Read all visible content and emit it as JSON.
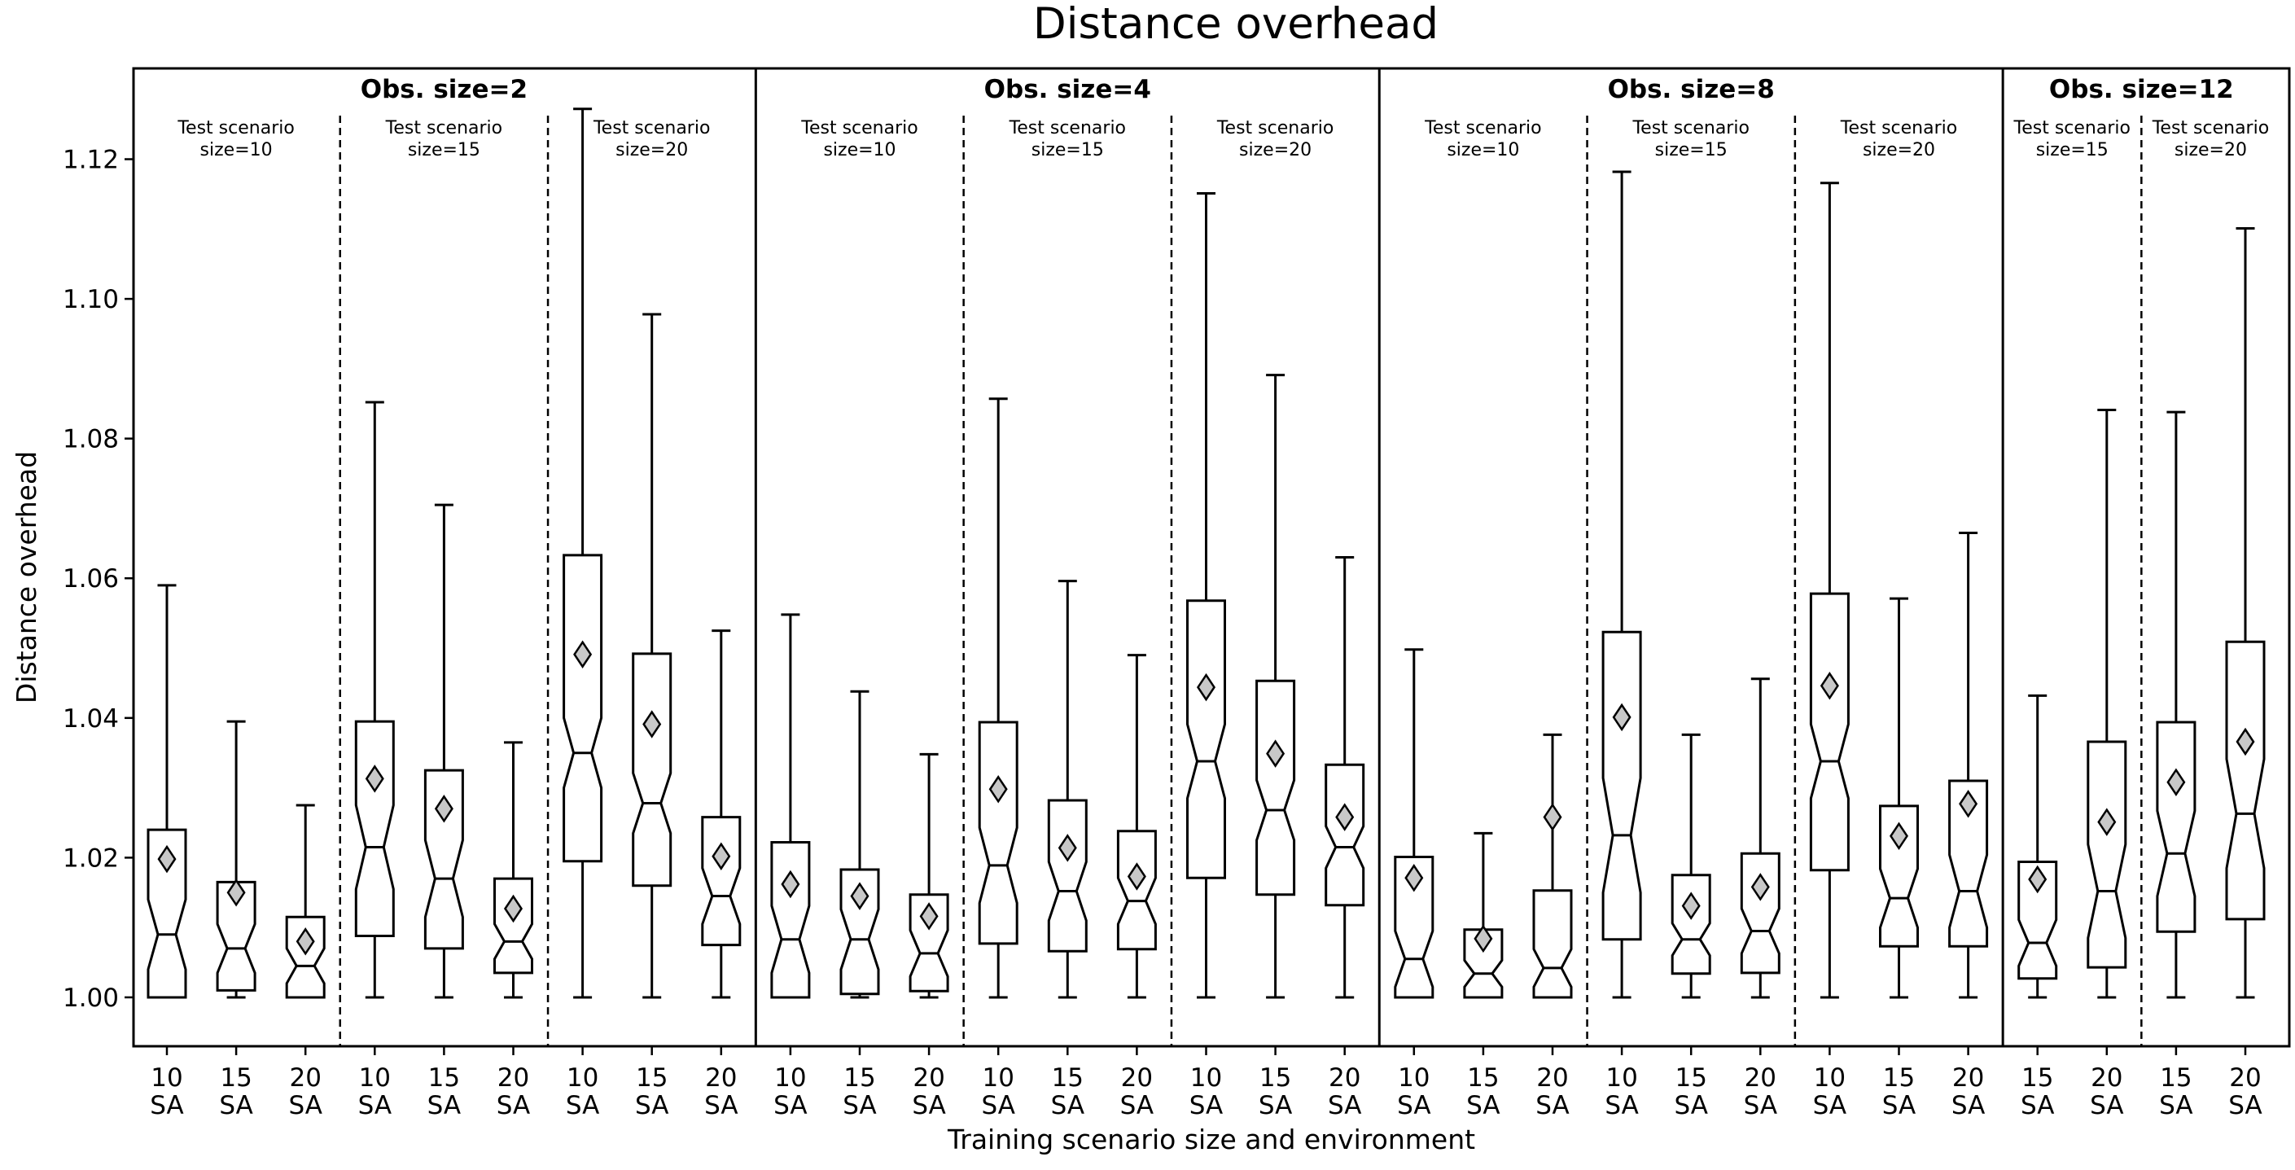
{
  "chart_data": {
    "type": "boxplot",
    "title": "Distance overhead",
    "xlabel": "Training scenario size and environment",
    "ylabel": "Distance overhead",
    "ylim": [
      0.993,
      1.133
    ],
    "yticks": [
      "1.00",
      "1.02",
      "1.04",
      "1.06",
      "1.08",
      "1.10",
      "1.12"
    ],
    "grid": false,
    "groups": [
      {
        "title": "Obs. size=2",
        "subgroups": [
          {
            "label_line1": "Test scenario",
            "label_line2": "size=10",
            "boxes": [
              {
                "train": "10",
                "env": "SA",
                "whislo": 1.0,
                "q1": 1.0,
                "med": 1.009,
                "q3": 1.024,
                "whishi": 1.059,
                "mean": 1.0198,
                "notch_lo": 1.004,
                "notch_hi": 1.014
              },
              {
                "train": "15",
                "env": "SA",
                "whislo": 1.0,
                "q1": 1.001,
                "med": 1.007,
                "q3": 1.0165,
                "whishi": 1.0395,
                "mean": 1.015,
                "notch_lo": 1.0035,
                "notch_hi": 1.0105
              },
              {
                "train": "20",
                "env": "SA",
                "whislo": 1.0,
                "q1": 1.0,
                "med": 1.0045,
                "q3": 1.0115,
                "whishi": 1.0275,
                "mean": 1.008,
                "notch_lo": 1.002,
                "notch_hi": 1.007
              }
            ]
          },
          {
            "label_line1": "Test scenario",
            "label_line2": "size=15",
            "boxes": [
              {
                "train": "10",
                "env": "SA",
                "whislo": 1.0,
                "q1": 1.0088,
                "med": 1.0215,
                "q3": 1.0395,
                "whishi": 1.0852,
                "mean": 1.0313,
                "notch_lo": 1.0155,
                "notch_hi": 1.0275
              },
              {
                "train": "15",
                "env": "SA",
                "whislo": 1.0,
                "q1": 1.007,
                "med": 1.017,
                "q3": 1.0325,
                "whishi": 1.0705,
                "mean": 1.027,
                "notch_lo": 1.0115,
                "notch_hi": 1.0225
              },
              {
                "train": "20",
                "env": "SA",
                "whislo": 1.0,
                "q1": 1.0035,
                "med": 1.008,
                "q3": 1.017,
                "whishi": 1.0365,
                "mean": 1.0127,
                "notch_lo": 1.0055,
                "notch_hi": 1.0105
              }
            ]
          },
          {
            "label_line1": "Test scenario",
            "label_line2": "size=20",
            "boxes": [
              {
                "train": "10",
                "env": "SA",
                "whislo": 1.0,
                "q1": 1.0195,
                "med": 1.035,
                "q3": 1.0633,
                "whishi": 1.1272,
                "mean": 1.0491,
                "notch_lo": 1.03,
                "notch_hi": 1.04
              },
              {
                "train": "15",
                "env": "SA",
                "whislo": 1.0,
                "q1": 1.016,
                "med": 1.0278,
                "q3": 1.0492,
                "whishi": 1.0978,
                "mean": 1.0391,
                "notch_lo": 1.0235,
                "notch_hi": 1.0321
              },
              {
                "train": "20",
                "env": "SA",
                "whislo": 1.0,
                "q1": 1.0075,
                "med": 1.0145,
                "q3": 1.0258,
                "whishi": 1.0525,
                "mean": 1.0202,
                "notch_lo": 1.0105,
                "notch_hi": 1.0185
              }
            ]
          }
        ]
      },
      {
        "title": "Obs. size=4",
        "subgroups": [
          {
            "label_line1": "Test scenario",
            "label_line2": "size=10",
            "boxes": [
              {
                "train": "10",
                "env": "SA",
                "whislo": 1.0,
                "q1": 1.0,
                "med": 1.0083,
                "q3": 1.0222,
                "whishi": 1.0548,
                "mean": 1.0162,
                "notch_lo": 1.0035,
                "notch_hi": 1.0131
              },
              {
                "train": "15",
                "env": "SA",
                "whislo": 1.0,
                "q1": 1.0005,
                "med": 1.0083,
                "q3": 1.0183,
                "whishi": 1.0438,
                "mean": 1.0145,
                "notch_lo": 1.004,
                "notch_hi": 1.0126
              },
              {
                "train": "20",
                "env": "SA",
                "whislo": 1.0,
                "q1": 1.0009,
                "med": 1.0063,
                "q3": 1.0147,
                "whishi": 1.0348,
                "mean": 1.0116,
                "notch_lo": 1.003,
                "notch_hi": 1.0096
              }
            ]
          },
          {
            "label_line1": "Test scenario",
            "label_line2": "size=15",
            "boxes": [
              {
                "train": "10",
                "env": "SA",
                "whislo": 1.0,
                "q1": 1.0077,
                "med": 1.0189,
                "q3": 1.0394,
                "whishi": 1.0857,
                "mean": 1.0298,
                "notch_lo": 1.0135,
                "notch_hi": 1.0243
              },
              {
                "train": "15",
                "env": "SA",
                "whislo": 1.0,
                "q1": 1.0066,
                "med": 1.0152,
                "q3": 1.0282,
                "whishi": 1.0596,
                "mean": 1.0214,
                "notch_lo": 1.011,
                "notch_hi": 1.0194
              },
              {
                "train": "20",
                "env": "SA",
                "whislo": 1.0,
                "q1": 1.0069,
                "med": 1.0138,
                "q3": 1.0238,
                "whishi": 1.049,
                "mean": 1.0173,
                "notch_lo": 1.0105,
                "notch_hi": 1.0171
              }
            ]
          },
          {
            "label_line1": "Test scenario",
            "label_line2": "size=20",
            "boxes": [
              {
                "train": "10",
                "env": "SA",
                "whislo": 1.0,
                "q1": 1.0171,
                "med": 1.0338,
                "q3": 1.0568,
                "whishi": 1.1151,
                "mean": 1.0444,
                "notch_lo": 1.0285,
                "notch_hi": 1.0391
              },
              {
                "train": "15",
                "env": "SA",
                "whislo": 1.0,
                "q1": 1.0147,
                "med": 1.0268,
                "q3": 1.0453,
                "whishi": 1.0891,
                "mean": 1.0349,
                "notch_lo": 1.0225,
                "notch_hi": 1.0311
              },
              {
                "train": "20",
                "env": "SA",
                "whislo": 1.0,
                "q1": 1.0132,
                "med": 1.0215,
                "q3": 1.0333,
                "whishi": 1.063,
                "mean": 1.0258,
                "notch_lo": 1.0185,
                "notch_hi": 1.0245
              }
            ]
          }
        ]
      },
      {
        "title": "Obs. size=8",
        "subgroups": [
          {
            "label_line1": "Test scenario",
            "label_line2": "size=10",
            "boxes": [
              {
                "train": "10",
                "env": "SA",
                "whislo": 1.0,
                "q1": 1.0,
                "med": 1.0055,
                "q3": 1.0201,
                "whishi": 1.0498,
                "mean": 1.0171,
                "notch_lo": 1.0015,
                "notch_hi": 1.0095
              },
              {
                "train": "15",
                "env": "SA",
                "whislo": 1.0,
                "q1": 1.0,
                "med": 1.0034,
                "q3": 1.0097,
                "whishi": 1.0235,
                "mean": 1.0084,
                "notch_lo": 1.0015,
                "notch_hi": 1.0053
              },
              {
                "train": "20",
                "env": "SA",
                "whislo": 1.0,
                "q1": 1.0,
                "med": 1.0042,
                "q3": 1.0153,
                "whishi": 1.0376,
                "mean": 1.0258,
                "notch_lo": 1.0015,
                "notch_hi": 1.0069
              }
            ]
          },
          {
            "label_line1": "Test scenario",
            "label_line2": "size=15",
            "boxes": [
              {
                "train": "10",
                "env": "SA",
                "whislo": 1.0,
                "q1": 1.0083,
                "med": 1.0232,
                "q3": 1.0523,
                "whishi": 1.1182,
                "mean": 1.0401,
                "notch_lo": 1.015,
                "notch_hi": 1.0314
              },
              {
                "train": "15",
                "env": "SA",
                "whislo": 1.0,
                "q1": 1.0034,
                "med": 1.0083,
                "q3": 1.0175,
                "whishi": 1.0376,
                "mean": 1.0131,
                "notch_lo": 1.006,
                "notch_hi": 1.0106
              },
              {
                "train": "20",
                "env": "SA",
                "whislo": 1.0,
                "q1": 1.0035,
                "med": 1.0095,
                "q3": 1.0206,
                "whishi": 1.0456,
                "mean": 1.0158,
                "notch_lo": 1.0063,
                "notch_hi": 1.0127
              }
            ]
          },
          {
            "label_line1": "Test scenario",
            "label_line2": "size=20",
            "boxes": [
              {
                "train": "10",
                "env": "SA",
                "whislo": 1.0,
                "q1": 1.0182,
                "med": 1.0338,
                "q3": 1.0578,
                "whishi": 1.1166,
                "mean": 1.0446,
                "notch_lo": 1.0285,
                "notch_hi": 1.0391
              },
              {
                "train": "15",
                "env": "SA",
                "whislo": 1.0,
                "q1": 1.0073,
                "med": 1.0142,
                "q3": 1.0274,
                "whishi": 1.0571,
                "mean": 1.0231,
                "notch_lo": 1.01,
                "notch_hi": 1.0184
              },
              {
                "train": "20",
                "env": "SA",
                "whislo": 1.0,
                "q1": 1.0073,
                "med": 1.0152,
                "q3": 1.031,
                "whishi": 1.0665,
                "mean": 1.0277,
                "notch_lo": 1.01,
                "notch_hi": 1.0204
              }
            ]
          }
        ]
      },
      {
        "title": "Obs. size=12",
        "subgroups": [
          {
            "label_line1": "Test scenario",
            "label_line2": "size=15",
            "boxes": [
              {
                "train": "15",
                "env": "SA",
                "whislo": 1.0,
                "q1": 1.0027,
                "med": 1.0078,
                "q3": 1.0194,
                "whishi": 1.0432,
                "mean": 1.0169,
                "notch_lo": 1.0045,
                "notch_hi": 1.0111
              },
              {
                "train": "20",
                "env": "SA",
                "whislo": 1.0,
                "q1": 1.0043,
                "med": 1.0152,
                "q3": 1.0366,
                "whishi": 1.0841,
                "mean": 1.0251,
                "notch_lo": 1.0085,
                "notch_hi": 1.0219
              }
            ]
          },
          {
            "label_line1": "Test scenario",
            "label_line2": "size=20",
            "boxes": [
              {
                "train": "15",
                "env": "SA",
                "whislo": 1.0,
                "q1": 1.0094,
                "med": 1.0206,
                "q3": 1.0394,
                "whishi": 1.0838,
                "mean": 1.0308,
                "notch_lo": 1.0145,
                "notch_hi": 1.0267
              },
              {
                "train": "20",
                "env": "SA",
                "whislo": 1.0,
                "q1": 1.0112,
                "med": 1.0263,
                "q3": 1.0509,
                "whishi": 1.1101,
                "mean": 1.0366,
                "notch_lo": 1.0185,
                "notch_hi": 1.0341
              }
            ]
          }
        ]
      }
    ]
  }
}
